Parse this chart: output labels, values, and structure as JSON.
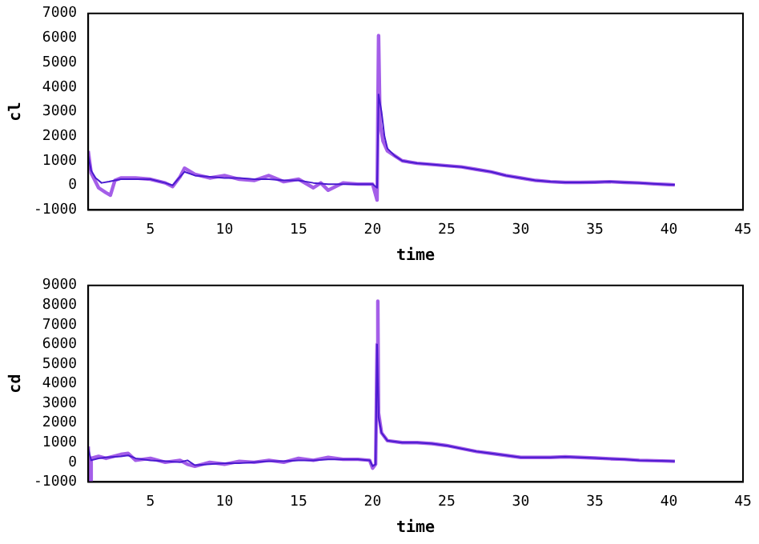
{
  "chart_data": [
    {
      "type": "line",
      "xlabel": "time",
      "ylabel": "cl",
      "xlim": [
        0.8,
        45
      ],
      "xticks": [
        5,
        10,
        15,
        20,
        25,
        30,
        35,
        40,
        45
      ],
      "ylim": [
        -1000,
        7000
      ],
      "yticks": [
        -1000,
        0,
        1000,
        2000,
        3000,
        4000,
        5000,
        6000,
        7000
      ],
      "grid": false,
      "legend": false,
      "marker": "none",
      "line_style": "solid",
      "series": [
        {
          "color": "#a45ee8",
          "x": [
            0.8,
            1.0,
            1.5,
            2.0,
            2.3,
            2.6,
            3,
            4,
            5,
            6,
            6.5,
            7,
            7.3,
            8,
            9,
            10,
            11,
            12,
            13,
            14,
            15,
            16,
            16.5,
            17,
            18,
            19,
            20,
            20.3,
            20.4,
            20.5,
            20.7,
            21,
            21.5,
            22,
            23,
            24,
            25,
            26,
            27,
            28,
            29,
            30,
            31,
            32,
            33,
            34,
            35,
            36,
            37,
            38,
            39,
            40,
            40.4
          ],
          "values": [
            1400,
            500,
            -100,
            -300,
            -400,
            200,
            300,
            300,
            250,
            100,
            -50,
            350,
            700,
            450,
            300,
            400,
            250,
            200,
            400,
            150,
            250,
            -100,
            100,
            -200,
            100,
            50,
            50,
            -600,
            6100,
            2500,
            1800,
            1400,
            1200,
            1000,
            900,
            850,
            800,
            750,
            650,
            550,
            400,
            300,
            200,
            150,
            120,
            120,
            130,
            150,
            120,
            100,
            60,
            30,
            20
          ]
        },
        {
          "color": "#4a1ad0",
          "x": [
            0.8,
            1.0,
            1.3,
            1.7,
            2.2,
            3,
            4,
            5,
            6,
            6.5,
            7,
            7.3,
            8,
            9,
            10,
            11,
            12,
            13,
            14,
            15,
            16,
            17,
            18,
            19,
            20,
            20.3,
            20.4,
            20.6,
            20.8,
            21,
            21.5,
            22,
            23,
            24,
            25,
            26,
            27,
            28,
            29,
            30,
            31,
            32,
            33,
            34,
            35,
            36,
            37,
            38,
            39,
            40,
            40.4
          ],
          "values": [
            1200,
            600,
            300,
            100,
            150,
            250,
            250,
            250,
            100,
            0,
            350,
            550,
            400,
            350,
            300,
            300,
            250,
            250,
            200,
            200,
            100,
            50,
            50,
            50,
            50,
            -100,
            3700,
            3000,
            2000,
            1500,
            1200,
            1000,
            900,
            850,
            800,
            750,
            650,
            550,
            400,
            300,
            200,
            150,
            120,
            120,
            130,
            150,
            120,
            100,
            60,
            30,
            20
          ]
        }
      ]
    },
    {
      "type": "line",
      "xlabel": "time",
      "ylabel": "cd",
      "xlim": [
        0.8,
        45
      ],
      "xticks": [
        5,
        10,
        15,
        20,
        25,
        30,
        35,
        40,
        45
      ],
      "ylim": [
        -1000,
        9000
      ],
      "yticks": [
        -1000,
        0,
        1000,
        2000,
        3000,
        4000,
        5000,
        6000,
        7000,
        8000,
        9000
      ],
      "grid": false,
      "legend": false,
      "marker": "none",
      "line_style": "solid",
      "series": [
        {
          "color": "#a45ee8",
          "x": [
            0.8,
            0.9,
            1.0,
            1.5,
            2,
            3,
            3.5,
            4,
            5,
            6,
            7,
            7.5,
            8,
            9,
            10,
            11,
            12,
            13,
            14,
            15,
            16,
            17,
            18,
            19,
            19.8,
            20,
            20.2,
            20.3,
            20.35,
            20.4,
            20.6,
            21,
            22,
            23,
            24,
            25,
            26,
            27,
            28,
            29,
            30,
            31,
            32,
            33,
            34,
            35,
            36,
            37,
            38,
            39,
            40,
            40.4
          ],
          "values": [
            800,
            -1000,
            200,
            300,
            200,
            400,
            450,
            100,
            200,
            0,
            100,
            -100,
            -200,
            0,
            -100,
            50,
            0,
            100,
            0,
            200,
            100,
            250,
            150,
            150,
            100,
            -300,
            -100,
            6000,
            8200,
            2500,
            1500,
            1100,
            1000,
            1000,
            950,
            850,
            700,
            550,
            450,
            350,
            250,
            250,
            250,
            280,
            250,
            220,
            180,
            150,
            100,
            80,
            60,
            50
          ]
        },
        {
          "color": "#4a1ad0",
          "x": [
            0.8,
            1,
            1.5,
            2,
            3,
            3.5,
            4,
            5,
            6,
            7,
            7.5,
            8,
            9,
            10,
            11,
            12,
            13,
            14,
            15,
            16,
            17,
            18,
            19,
            19.8,
            20,
            20.2,
            20.3,
            20.4,
            20.6,
            21,
            22,
            23,
            24,
            25,
            26,
            27,
            28,
            29,
            30,
            31,
            32,
            33,
            34,
            35,
            36,
            37,
            38,
            39,
            40,
            40.4
          ],
          "values": [
            700,
            100,
            200,
            250,
            300,
            350,
            200,
            100,
            50,
            0,
            100,
            -150,
            -100,
            -50,
            -50,
            0,
            50,
            50,
            100,
            100,
            150,
            150,
            150,
            100,
            -200,
            -100,
            6000,
            2300,
            1500,
            1100,
            1000,
            1000,
            950,
            850,
            700,
            550,
            450,
            350,
            250,
            250,
            250,
            280,
            250,
            220,
            180,
            150,
            100,
            80,
            60,
            50
          ]
        }
      ]
    }
  ]
}
